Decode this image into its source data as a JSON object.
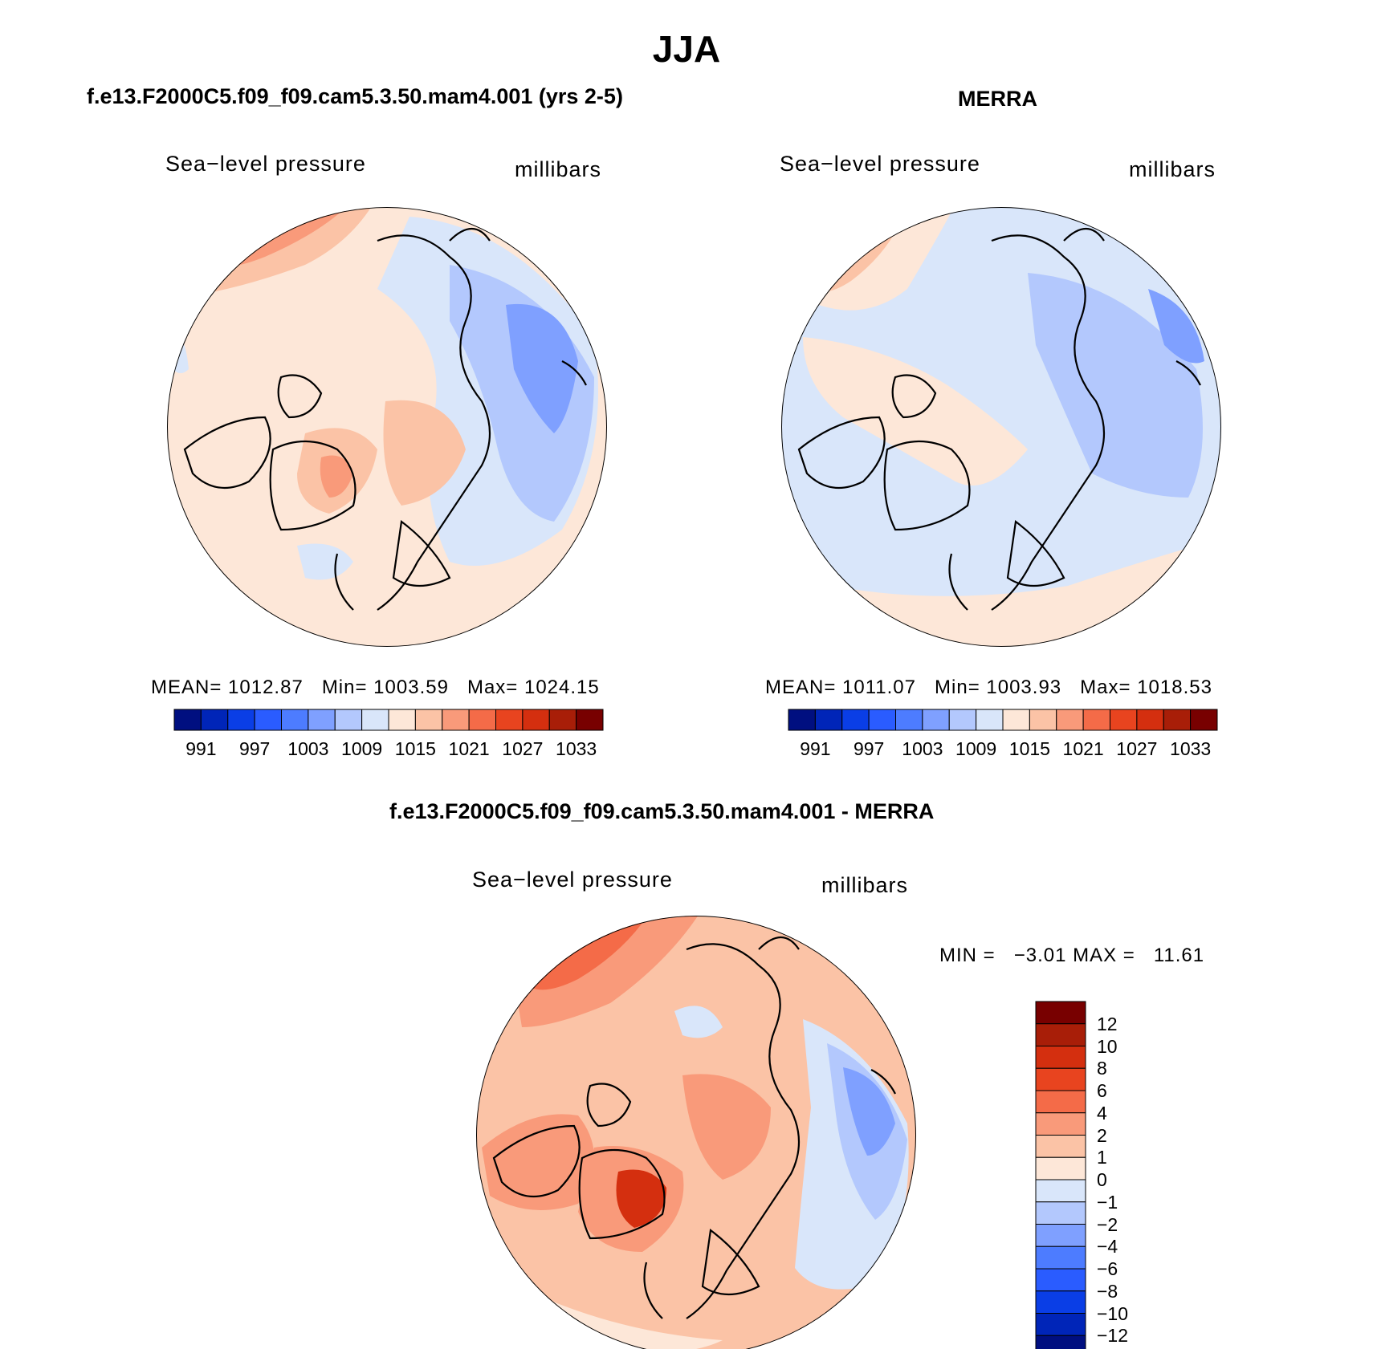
{
  "figure": {
    "title": "JJA"
  },
  "panels": {
    "model": {
      "title": "f.e13.F2000C5.f09_f09.cam5.3.50.mam4.001 (yrs 2-5)",
      "left_label": "Sea−level pressure",
      "right_label": "millibars",
      "stats": {
        "mean_label": "MEAN=",
        "mean": "1012.87",
        "min_label": "Min=",
        "min": "1003.59",
        "max_label": "Max=",
        "max": "1024.15"
      }
    },
    "obs": {
      "title": "MERRA",
      "left_label": "Sea−level pressure",
      "right_label": "millibars",
      "stats": {
        "mean_label": "MEAN=",
        "mean": "1011.07",
        "min_label": "Min=",
        "min": "1003.93",
        "max_label": "Max=",
        "max": "1018.53"
      }
    },
    "diff": {
      "title": "f.e13.F2000C5.f09_f09.cam5.3.50.mam4.001 - MERRA",
      "left_label": "Sea−level pressure",
      "right_label": "millibars",
      "stats": {
        "min_label": "MIN =",
        "min": "−3.01",
        "max_label": "MAX =",
        "max": "11.61"
      }
    }
  },
  "colorbars": {
    "absolute": {
      "colors": [
        "#000f80",
        "#0025b8",
        "#0a3ee6",
        "#2a5cff",
        "#4d7cff",
        "#7fa0ff",
        "#b3c8fd",
        "#d9e6fa",
        "#fde7d8",
        "#fbc3a6",
        "#f99a7a",
        "#f46b48",
        "#e8441f",
        "#d42f0f",
        "#a81e08",
        "#780000"
      ],
      "tick_labels": [
        "991",
        "997",
        "1003",
        "1009",
        "1015",
        "1021",
        "1027",
        "1033"
      ]
    },
    "difference": {
      "colors": [
        "#000f80",
        "#0025b8",
        "#0a3ee6",
        "#2a5cff",
        "#4d7cff",
        "#7fa0ff",
        "#b3c8fd",
        "#d9e6fa",
        "#fde7d8",
        "#fbc3a6",
        "#f99a7a",
        "#f46b48",
        "#e8441f",
        "#d42f0f",
        "#a81e08",
        "#780000"
      ],
      "tick_labels": [
        "12",
        "10",
        "8",
        "6",
        "4",
        "2",
        "1",
        "0",
        "−1",
        "−2",
        "−4",
        "−6",
        "−8",
        "−10",
        "−12"
      ]
    }
  },
  "map_colors": {
    "land_outline": "#000000",
    "model_fill": [
      "#fde7d8",
      "#fbc3a6",
      "#f99a7a",
      "#d9e6fa",
      "#b3c8fd",
      "#7fa0ff"
    ],
    "obs_fill": [
      "#d9e6fa",
      "#b3c8fd",
      "#fde7d8",
      "#fbc3a6",
      "#7fa0ff"
    ],
    "diff_fill": [
      "#fbc3a6",
      "#f99a7a",
      "#f46b48",
      "#d42f0f",
      "#fde7d8",
      "#d9e6fa",
      "#b3c8fd",
      "#7fa0ff"
    ]
  }
}
